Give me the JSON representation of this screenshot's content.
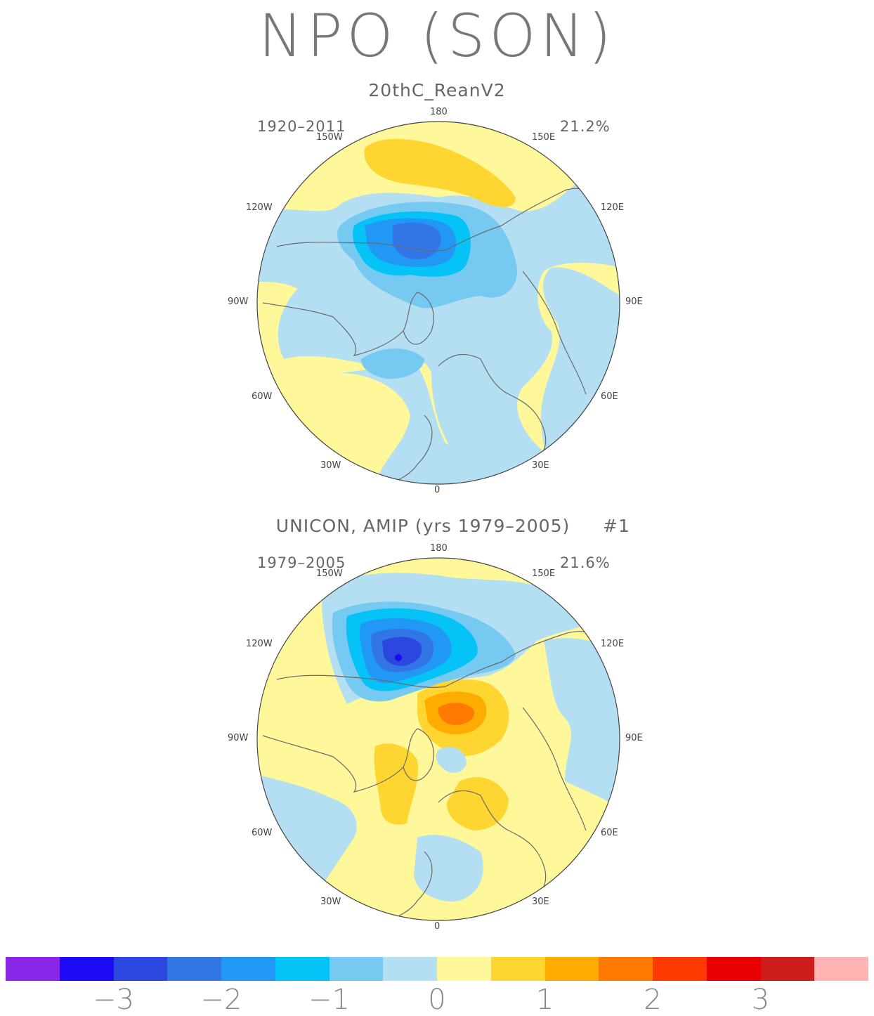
{
  "title": "NPO (SON)",
  "panels": [
    {
      "name": "20thC_ReanV2",
      "years": "1920–2011",
      "variance": "21.2%",
      "member": ""
    },
    {
      "name": "UNICON, AMIP (yrs 1979–2005)",
      "years": "1979–2005",
      "variance": "21.6%",
      "member": "#1"
    }
  ],
  "longitude_labels": {
    "top": "180",
    "bottom": "0",
    "upper_left": "150W",
    "upper_right": "150E",
    "left_high": "120W",
    "right_high": "120E",
    "left_mid": "90W",
    "right_mid": "90E",
    "left_low": "60W",
    "right_low": "60E",
    "lower_left": "30W",
    "lower_right": "30E"
  },
  "colorbar": {
    "colors": [
      "#8a26e8",
      "#1d0bf5",
      "#2c46e0",
      "#3276e6",
      "#2198f5",
      "#05c2f7",
      "#76c9f1",
      "#b4dff2",
      "#fff89a",
      "#ffd531",
      "#ffab00",
      "#ff7a00",
      "#ff3a00",
      "#e80000",
      "#cc1c1c",
      "#ffb3b3"
    ],
    "tick_labels": [
      "−3",
      "−2",
      "−1",
      "0",
      "1",
      "2",
      "3"
    ]
  }
}
